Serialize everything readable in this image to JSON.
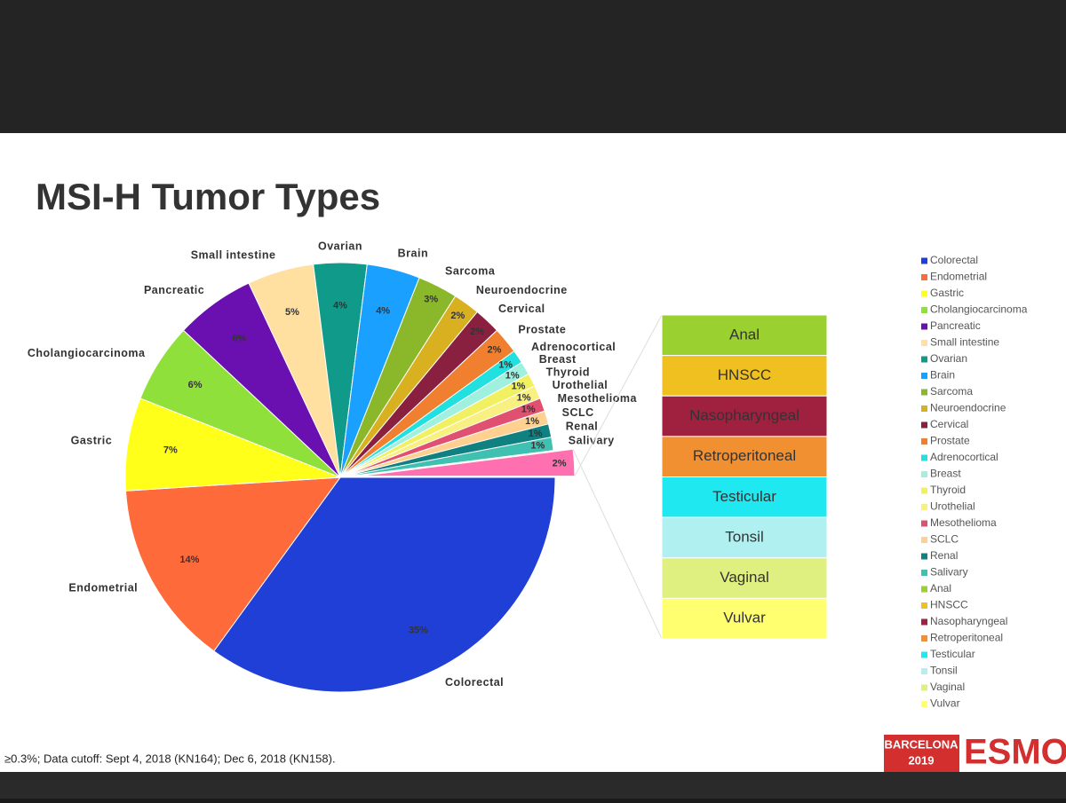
{
  "chart_data": {
    "type": "pie",
    "title": "MSI-H Tumor Types",
    "categories": [
      "Colorectal",
      "Endometrial",
      "Gastric",
      "Cholangiocarcinoma",
      "Pancreatic",
      "Small intestine",
      "Ovarian",
      "Brain",
      "Sarcoma",
      "Neuroendocrine",
      "Cervical",
      "Prostate",
      "Adrenocortical",
      "Breast",
      "Thyroid",
      "Urothelial",
      "Mesothelioma",
      "SCLC",
      "Renal",
      "Salivary",
      null
    ],
    "values": [
      35,
      14,
      7,
      6,
      6,
      5,
      4,
      4,
      3,
      2,
      2,
      2,
      1,
      1,
      1,
      1,
      1,
      1,
      1,
      1,
      2
    ],
    "value_labels": [
      "35%",
      "14%",
      "7%",
      "6%",
      "6%",
      "5%",
      "4%",
      "4%",
      "3%",
      "2%",
      "2%",
      "2%",
      "1%",
      "1%",
      "1%",
      "1%",
      "1%",
      "1%",
      "1%",
      "1%",
      "2%"
    ],
    "colors": [
      "#1f3fd6",
      "#ff6a3a",
      "#ffff1a",
      "#8fe03a",
      "#6a0fb0",
      "#ffe0a0",
      "#0f9a8a",
      "#1aa0ff",
      "#8ab82a",
      "#d8b020",
      "#8a2040",
      "#f08030",
      "#20e0e0",
      "#a0f0e0",
      "#f0f060",
      "#f8f080",
      "#e05070",
      "#ffd090",
      "#108080",
      "#40c0b0",
      "#ff70b0"
    ],
    "breakdown": {
      "categories": [
        "Anal",
        "HNSCC",
        "Nasopharyngeal",
        "Retroperitoneal",
        "Testicular",
        "Tonsil",
        "Vaginal",
        "Vulvar"
      ],
      "values": [
        0.25,
        0.25,
        0.25,
        0.25,
        0.25,
        0.25,
        0.25,
        0.25
      ],
      "colors": [
        "#9ad030",
        "#f0c020",
        "#a02040",
        "#f09030",
        "#20e8f0",
        "#b0f0f0",
        "#e0f080",
        "#ffff70"
      ]
    },
    "legend": "right"
  },
  "footnote": "≥0.3%; Data cutoff: Sept 4, 2018 (KN164); Dec 6, 2018 (KN158).",
  "logo": {
    "event": "BARCELONA",
    "year": "2019",
    "brand": "ESMO"
  }
}
